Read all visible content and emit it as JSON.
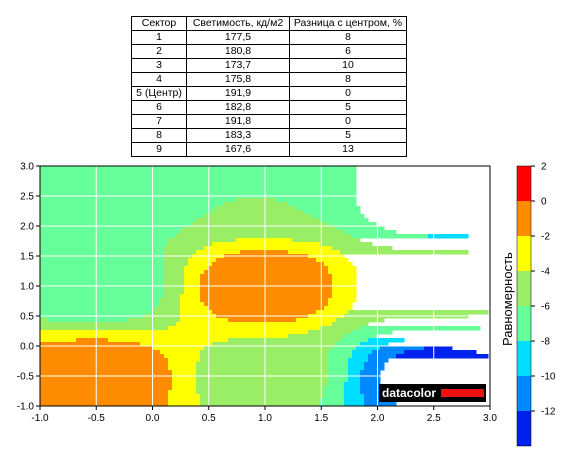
{
  "table": {
    "headers": [
      "Сектор",
      "Светимость, кд/м2",
      "Разница с центром, %"
    ],
    "rows": [
      [
        "1",
        "177,5",
        "8"
      ],
      [
        "2",
        "180,8",
        "6"
      ],
      [
        "3",
        "173,7",
        "10"
      ],
      [
        "4",
        "175,8",
        "8"
      ],
      [
        "5 (Центр)",
        "191,9",
        "0"
      ],
      [
        "6",
        "182,8",
        "5"
      ],
      [
        "7",
        "191,8",
        "0"
      ],
      [
        "8",
        "183,3",
        "5"
      ],
      [
        "9",
        "167,6",
        "13"
      ]
    ]
  },
  "chart_data": {
    "type": "heatmap",
    "title": "",
    "xlabel": "",
    "ylabel": "",
    "xlim": [
      -1.0,
      3.0
    ],
    "ylim": [
      -1.0,
      3.0
    ],
    "x_ticks": [
      "-1.0",
      "-0.5",
      "0.0",
      "0.5",
      "1.0",
      "1.5",
      "2.0",
      "2.5",
      "3.0"
    ],
    "y_ticks": [
      "3.0",
      "2.5",
      "2.0",
      "1.5",
      "1.0",
      "0.5",
      "0.0",
      "-0.5",
      "-1.0"
    ],
    "grid": true,
    "sectors": [
      {
        "sector": "1",
        "x": -0.5,
        "y": 2.5,
        "diff_percent": -8
      },
      {
        "sector": "2",
        "x": 1.0,
        "y": 2.5,
        "diff_percent": -6
      },
      {
        "sector": "3",
        "x": 2.5,
        "y": 2.5,
        "diff_percent": -10
      },
      {
        "sector": "4",
        "x": -0.5,
        "y": 1.0,
        "diff_percent": -8
      },
      {
        "sector": "5 (Центр)",
        "x": 1.0,
        "y": 1.0,
        "diff_percent": 0
      },
      {
        "sector": "6",
        "x": 2.5,
        "y": 1.0,
        "diff_percent": -5
      },
      {
        "sector": "7",
        "x": -0.5,
        "y": -0.5,
        "diff_percent": 0
      },
      {
        "sector": "8",
        "x": 1.0,
        "y": -0.5,
        "diff_percent": -5
      },
      {
        "sector": "9",
        "x": 2.5,
        "y": -0.5,
        "diff_percent": -13
      }
    ],
    "colorbar": {
      "label": "Равномерность",
      "ticks": [
        "2",
        "0",
        "-2",
        "-4",
        "-6",
        "-8",
        "-10",
        "-12"
      ],
      "levels": [
        2,
        0,
        -2,
        -4,
        -6,
        -8,
        -10,
        -12,
        -14
      ],
      "colors": [
        "#ff0000",
        "#ff8c00",
        "#ffff00",
        "#99ee66",
        "#66ff99",
        "#00ddff",
        "#0088ff",
        "#0022ee"
      ]
    },
    "logo": "datacolor"
  }
}
